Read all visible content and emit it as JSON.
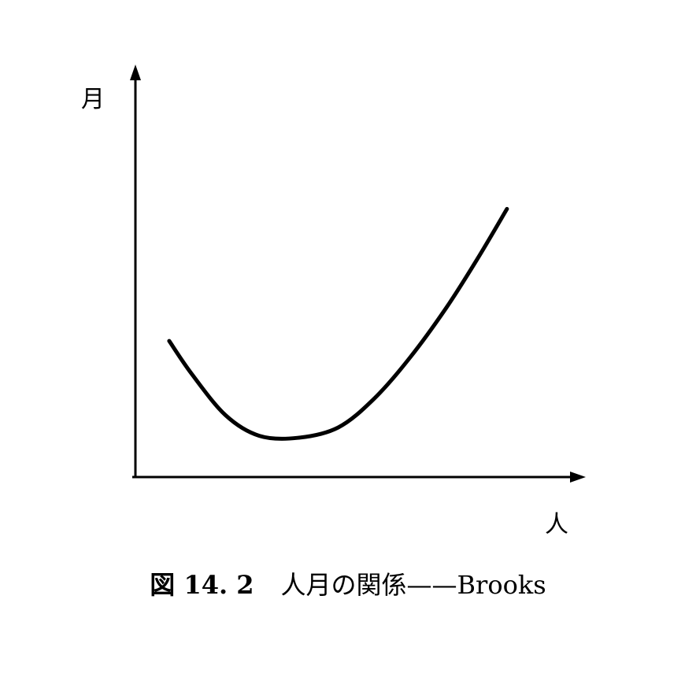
{
  "caption": {
    "number": "図 14. 2",
    "title": "人月の関係——Brooks"
  },
  "chart_data": {
    "type": "line",
    "title": "",
    "xlabel": "人",
    "ylabel": "月",
    "xlim": [
      0,
      10
    ],
    "ylim": [
      0,
      10
    ],
    "grid": false,
    "legend": "none",
    "series": [
      {
        "x": [
          0.75,
          1.25,
          2.0,
          2.75,
          3.6,
          4.5,
          5.3,
          6.1,
          6.9,
          7.6,
          8.25
        ],
        "values": [
          3.3,
          2.5,
          1.5,
          1.0,
          0.95,
          1.2,
          1.9,
          2.9,
          4.1,
          5.3,
          6.5
        ]
      }
    ],
    "colors": {
      "line": "#000000",
      "axes": "#000000"
    }
  }
}
